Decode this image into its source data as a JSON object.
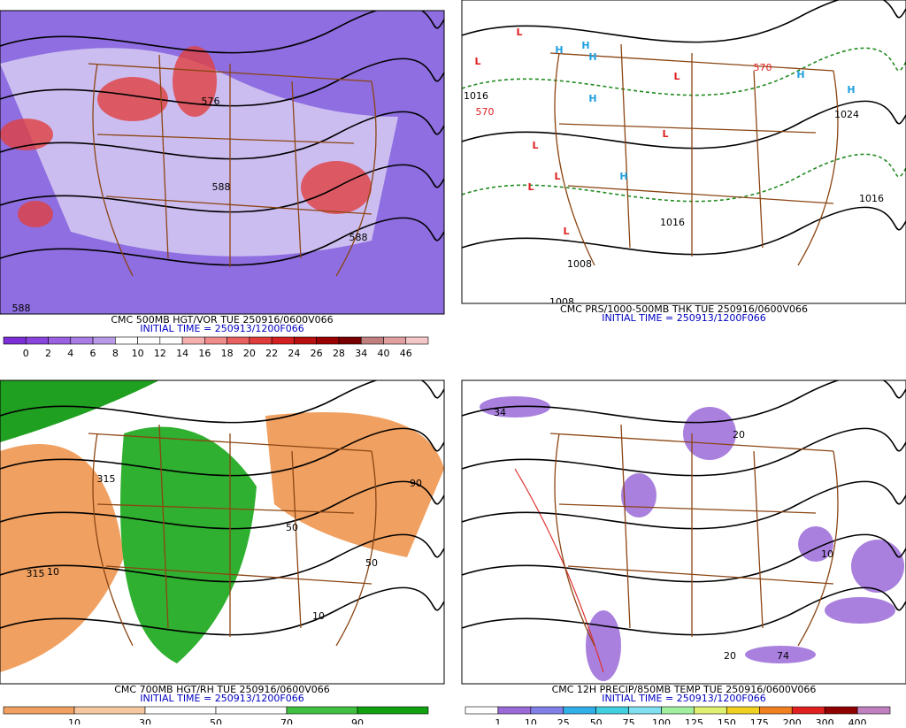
{
  "panels": [
    {
      "title": "CMC 500MB HGT/VOR TUE 250916/0600V066",
      "initial_time": "INITIAL TIME = 250913/1200F066",
      "colorbar": {
        "labels": [
          0,
          2,
          4,
          6,
          8,
          10,
          12,
          14,
          16,
          18,
          20,
          22,
          24,
          26,
          28,
          34,
          40,
          46
        ],
        "colors": [
          "#7b2fd6",
          "#8a45dc",
          "#9a62e0",
          "#a97de4",
          "#b99ae8",
          "#ffffff",
          "#ffffff",
          "#ffffff",
          "#f5b0b0",
          "#ef8c8c",
          "#e86060",
          "#e03c3c",
          "#d42020",
          "#b81010",
          "#9a0000",
          "#7a0000",
          "#c08080",
          "#e0a0a0",
          "#f4c8c8"
        ]
      },
      "map_labels": [
        "588",
        "588",
        "576",
        "588"
      ]
    },
    {
      "title": "CMC PRS/1000-500MB THK TUE 250916/0600V066",
      "initial_time": "INITIAL TIME = 250913/1200F066",
      "map_labels": [
        "L",
        "L",
        "L",
        "L",
        "L",
        "L",
        "L",
        "L",
        "H",
        "H",
        "H",
        "H",
        "H",
        "H",
        "H",
        "1016",
        "570",
        "1024",
        "1016",
        "1016",
        "1008",
        "1008",
        "570"
      ]
    },
    {
      "title": "CMC 700MB HGT/RH TUE 250916/0600V066",
      "initial_time": "INITIAL TIME = 250913/1200F066",
      "colorbar": {
        "labels": [
          10,
          30,
          50,
          70,
          90
        ],
        "colors": [
          "#f0a060",
          "#f5c8a0",
          "#ffffff",
          "#ffffff",
          "#40c040",
          "#10a010"
        ]
      },
      "map_labels": [
        "315",
        "10",
        "50",
        "90",
        "10",
        "50",
        "315"
      ]
    },
    {
      "title": "CMC 12H PRECIP/850MB TEMP TUE 250916/0600V066",
      "initial_time": "INITIAL TIME = 250913/1200F066",
      "colorbar": {
        "labels": [
          1,
          10,
          25,
          50,
          75,
          100,
          125,
          150,
          175,
          200,
          300,
          400
        ],
        "colors": [
          "#ffffff",
          "#9a6ad8",
          "#8080e8",
          "#30b0e8",
          "#40d0e0",
          "#80e0f0",
          "#a0f0a0",
          "#e0f070",
          "#f0d020",
          "#f08020",
          "#e02020",
          "#900000",
          "#c080c0"
        ]
      },
      "map_labels": [
        "20",
        "34",
        "74",
        "20",
        "10"
      ]
    }
  ]
}
